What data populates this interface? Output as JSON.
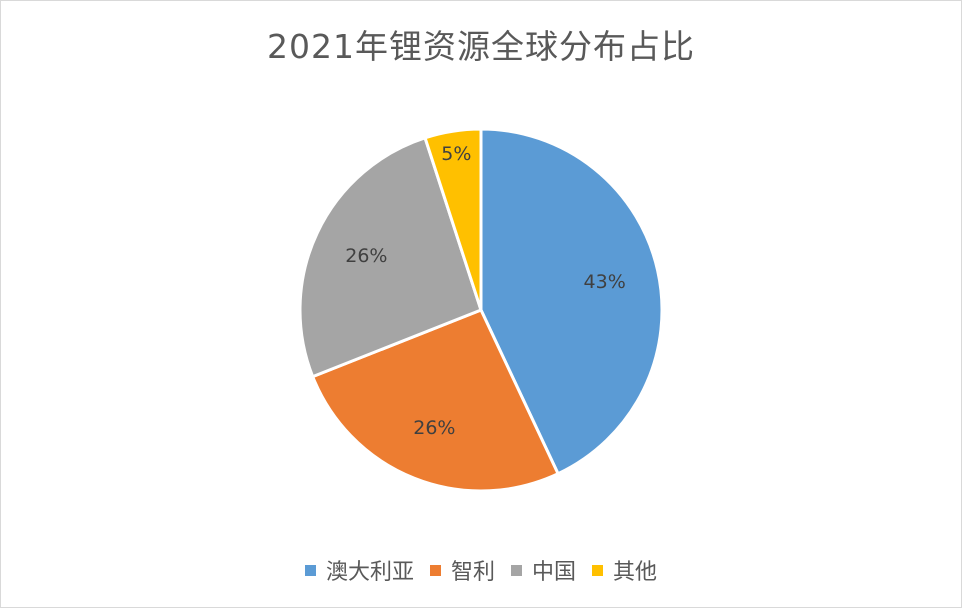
{
  "chart_data": {
    "type": "pie",
    "title": "2021年锂资源全球分布占比",
    "categories": [
      "澳大利亚",
      "智利",
      "中国",
      "其他"
    ],
    "values": [
      43,
      26,
      26,
      5
    ],
    "value_labels": [
      "43%",
      "26%",
      "26%",
      "5%"
    ],
    "colors": [
      "#5b9bd5",
      "#ed7d31",
      "#a5a5a5",
      "#ffc000"
    ],
    "start_angle": "top (12 o'clock), clockwise",
    "legend_position": "bottom",
    "data_labels": "inside, percentage"
  },
  "title": "2021年锂资源全球分布占比",
  "legend": [
    {
      "label": "澳大利亚",
      "color": "#5b9bd5"
    },
    {
      "label": "智利",
      "color": "#ed7d31"
    },
    {
      "label": "中国",
      "color": "#a5a5a5"
    },
    {
      "label": "其他",
      "color": "#ffc000"
    }
  ],
  "labels": [
    "43%",
    "26%",
    "26%",
    "5%"
  ]
}
